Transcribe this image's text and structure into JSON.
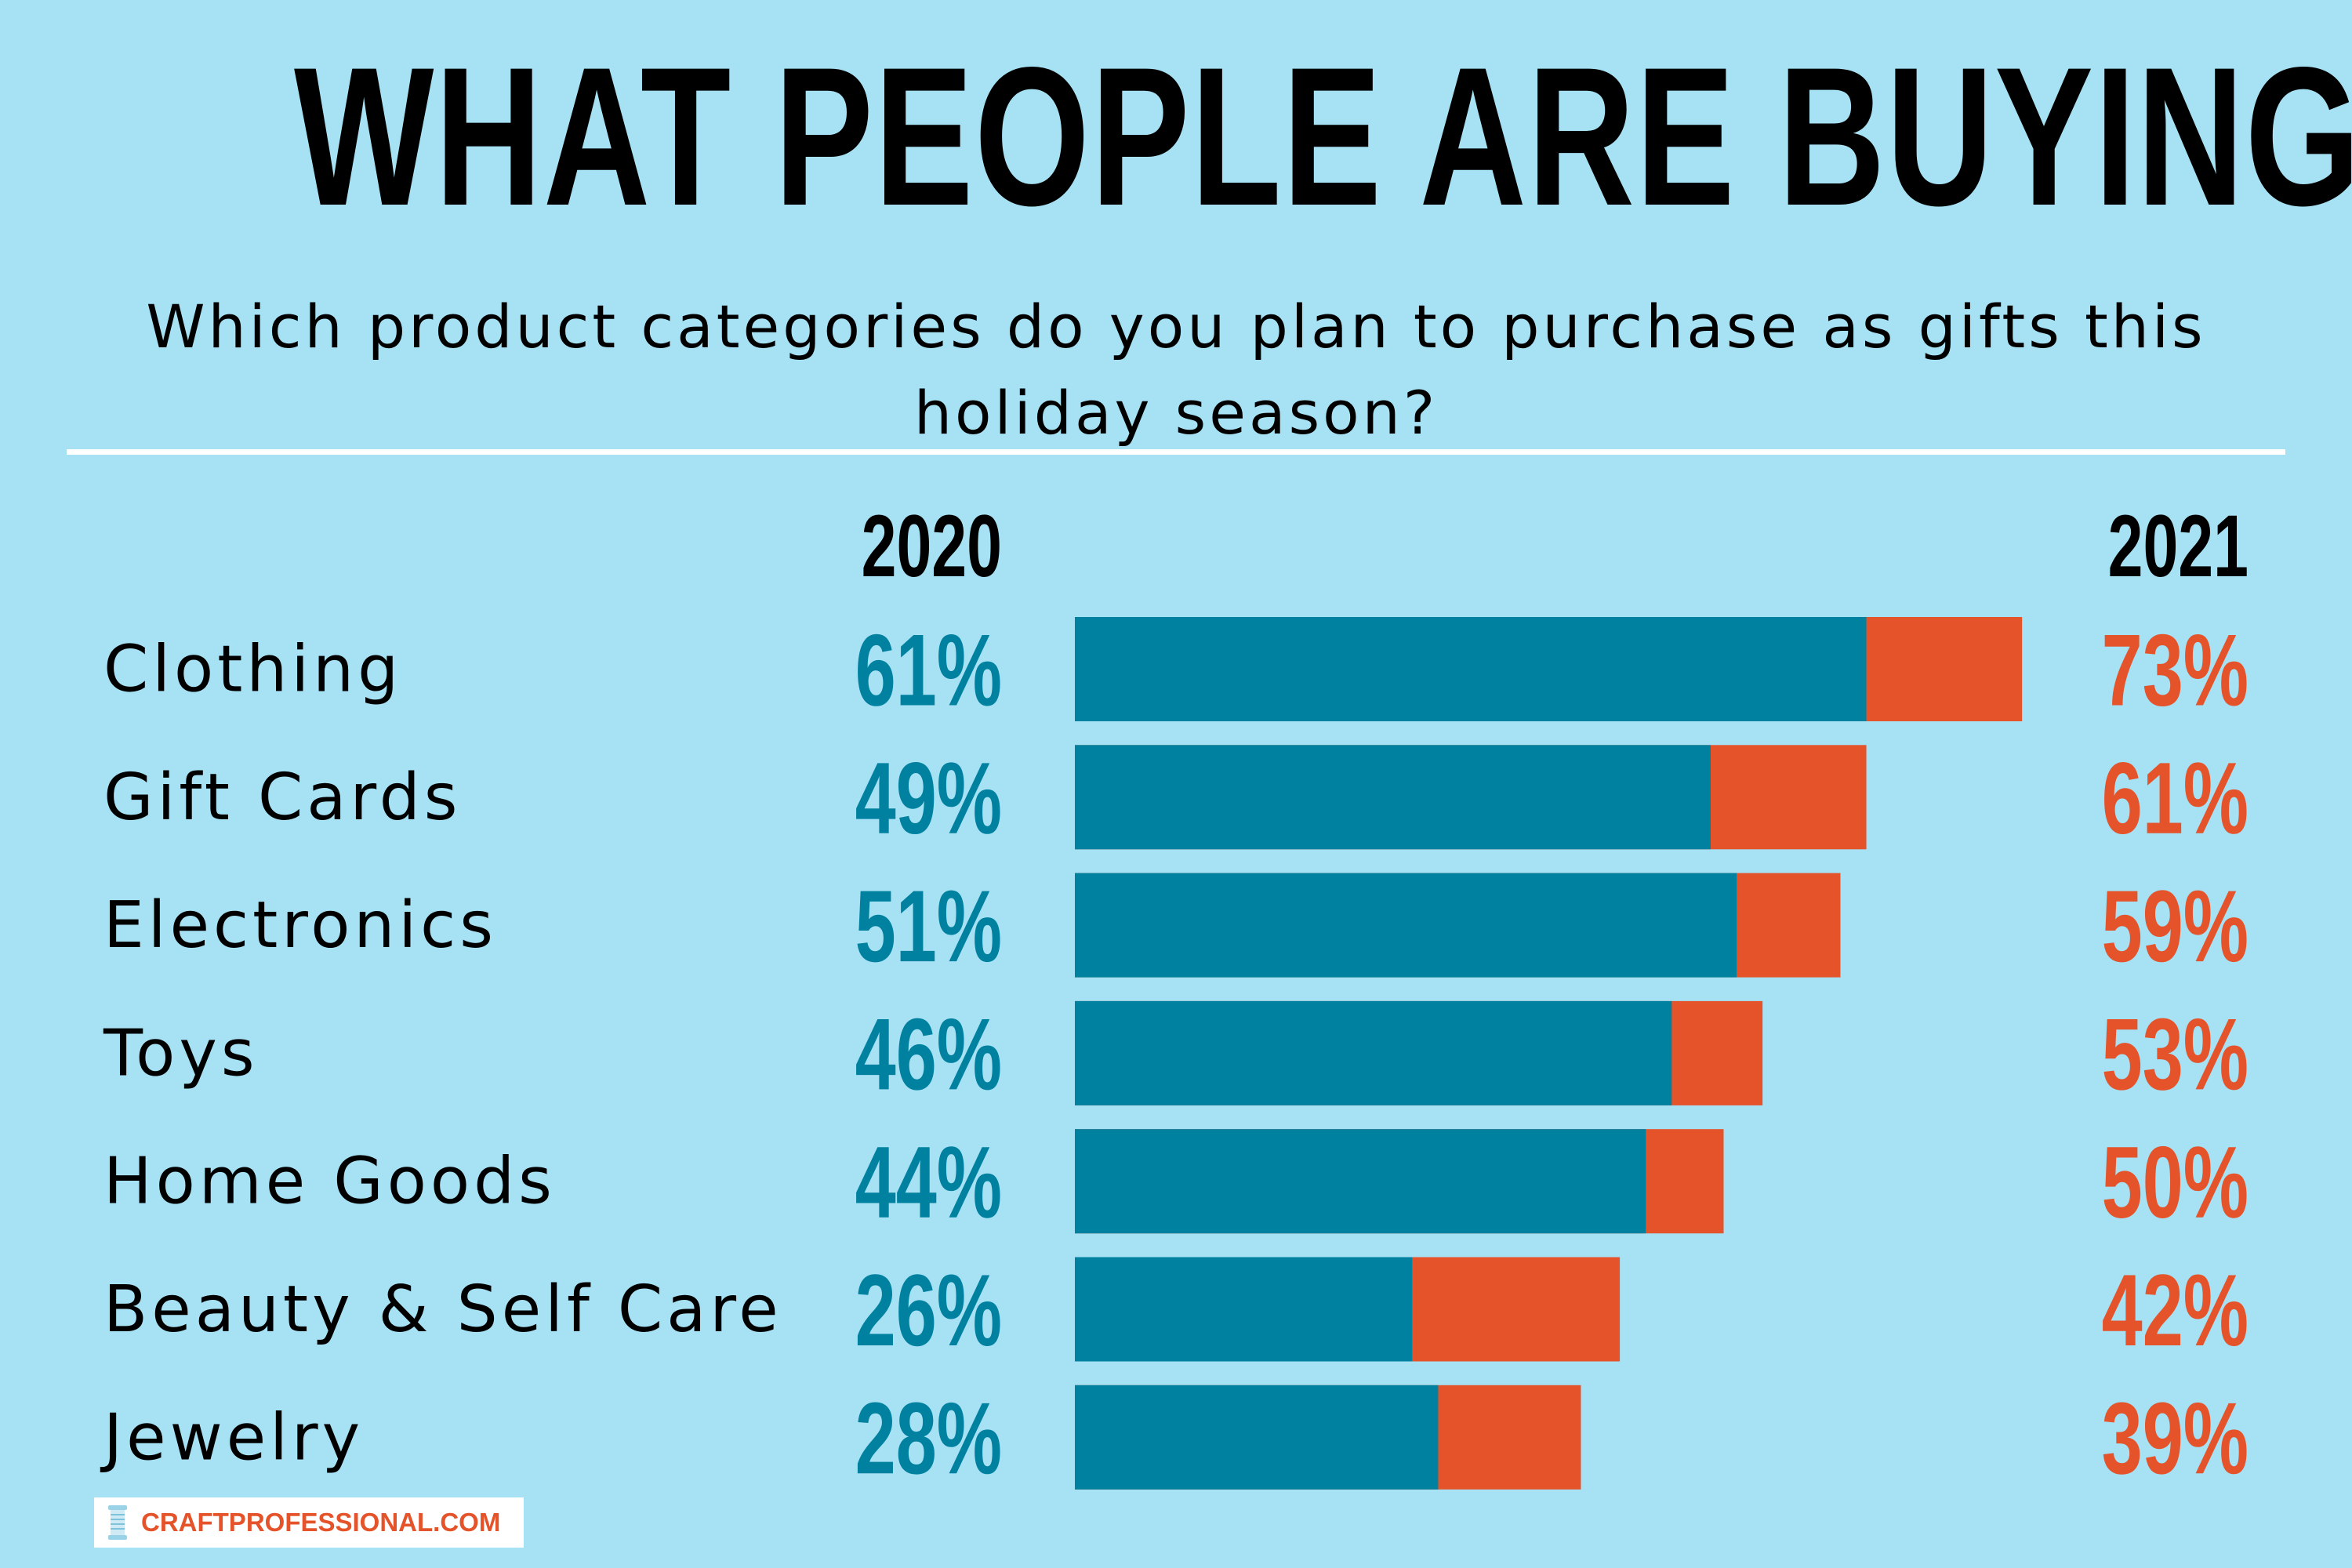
{
  "title": "WHAT PEOPLE ARE BUYING",
  "subtitle": "Which product categories do you plan to purchase as gifts this holiday season?",
  "logo": {
    "text": "CRAFTPROFESSIONAL.COM",
    "icon": "thread-spool-icon"
  },
  "colors": {
    "background": "#a6e1f4",
    "series_2020": "#00819f",
    "series_2021": "#e5532a",
    "text": "#000000",
    "divider": "#ffffff"
  },
  "chart_data": {
    "type": "bar",
    "orientation": "horizontal",
    "overlapping": true,
    "title": "WHAT PEOPLE ARE BUYING",
    "subtitle": "Which product categories do you plan to purchase as gifts this holiday season?",
    "categories": [
      "Clothing",
      "Gift Cards",
      "Electronics",
      "Toys",
      "Home Goods",
      "Beauty & Self Care",
      "Jewelry"
    ],
    "series": [
      {
        "name": "2020",
        "values": [
          61,
          49,
          51,
          46,
          44,
          26,
          28
        ],
        "labels": [
          "61%",
          "49%",
          "51%",
          "46%",
          "44%",
          "26%",
          "28%"
        ]
      },
      {
        "name": "2021",
        "values": [
          73,
          61,
          59,
          53,
          50,
          42,
          39
        ],
        "labels": [
          "73%",
          "61%",
          "59%",
          "53%",
          "50%",
          "42%",
          "39%"
        ]
      }
    ],
    "unit": "%",
    "xlim": [
      0,
      100
    ],
    "grid": false,
    "legend": "column headers"
  }
}
